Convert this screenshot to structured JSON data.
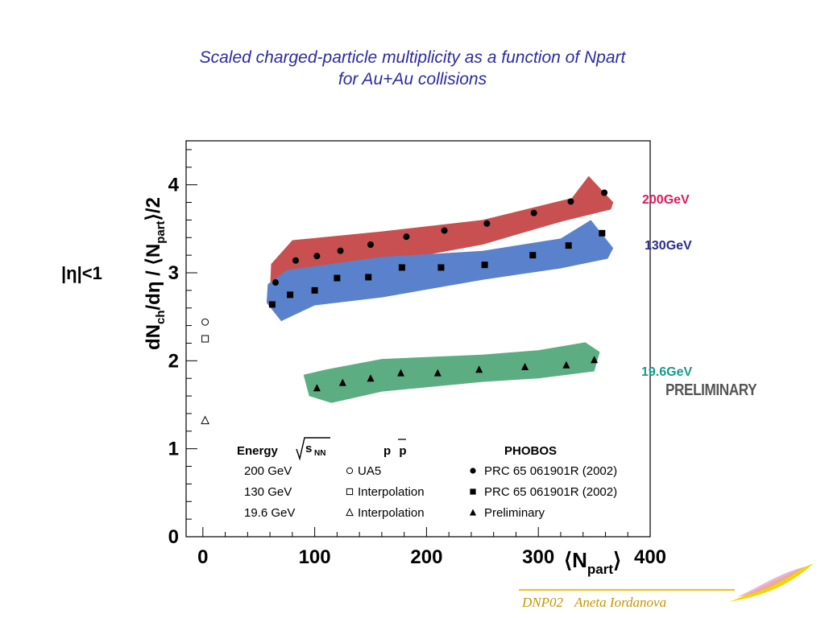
{
  "slide": {
    "title_line1": "Scaled charged-particle multiplicity as a function of Npart",
    "title_line2": "for Au+Au collisions",
    "eta_cut": "|η|<1",
    "preliminary": "PRELIMINARY",
    "footer_event": "DNP02",
    "footer_author": "Aneta Iordanova"
  },
  "colors": {
    "band_200": "#c85050",
    "band_130": "#5a82cc",
    "band_19": "#5cad82",
    "label_200": "#e0195a",
    "label_130": "#2b2b8c",
    "label_19": "#1a9a8a",
    "title": "#2b2ba0"
  },
  "chart_data": {
    "type": "scatter",
    "xlabel": "⟨N_part⟩",
    "ylabel": "dN_ch/dη / ⟨N_part⟩/2",
    "xlim": [
      -15,
      400
    ],
    "ylim": [
      0,
      4.5
    ],
    "xticks": [
      0,
      100,
      200,
      300,
      400
    ],
    "yticks": [
      0,
      1,
      2,
      3,
      4
    ],
    "grid": false,
    "series": [
      {
        "name": "200 GeV PHOBOS PRC 65 061901R (2002)",
        "energy_label": "200GeV",
        "marker": "filled-circle",
        "x": [
          65,
          83,
          102,
          123,
          150,
          182,
          216,
          254,
          296,
          329,
          359
        ],
        "y": [
          2.89,
          3.14,
          3.19,
          3.25,
          3.32,
          3.41,
          3.48,
          3.56,
          3.68,
          3.81,
          3.91
        ],
        "band_upper": [
          [
            61,
            3.1
          ],
          [
            80,
            3.37
          ],
          [
            160,
            3.47
          ],
          [
            250,
            3.6
          ],
          [
            330,
            3.85
          ],
          [
            345,
            4.1
          ],
          [
            367,
            3.8
          ]
        ],
        "band_lower": [
          [
            365,
            3.72
          ],
          [
            320,
            3.58
          ],
          [
            250,
            3.32
          ],
          [
            160,
            3.11
          ],
          [
            95,
            2.95
          ],
          [
            70,
            2.72
          ],
          [
            60,
            2.78
          ]
        ]
      },
      {
        "name": "130 GeV PHOBOS PRC 65 061901R (2002)",
        "energy_label": "130GeV",
        "marker": "filled-square",
        "x": [
          62,
          78,
          100,
          120,
          148,
          178,
          213,
          252,
          295,
          327,
          357
        ],
        "y": [
          2.64,
          2.75,
          2.8,
          2.94,
          2.95,
          3.06,
          3.06,
          3.09,
          3.2,
          3.31,
          3.45
        ],
        "band_upper": [
          [
            58,
            2.87
          ],
          [
            75,
            3.03
          ],
          [
            160,
            3.18
          ],
          [
            250,
            3.25
          ],
          [
            320,
            3.39
          ],
          [
            347,
            3.6
          ],
          [
            367,
            3.28
          ]
        ],
        "band_lower": [
          [
            362,
            3.16
          ],
          [
            320,
            3.05
          ],
          [
            250,
            2.92
          ],
          [
            160,
            2.72
          ],
          [
            100,
            2.63
          ],
          [
            70,
            2.45
          ],
          [
            57,
            2.66
          ]
        ]
      },
      {
        "name": "19.6 GeV PHOBOS Preliminary",
        "energy_label": "19.6GeV",
        "marker": "filled-triangle",
        "x": [
          102,
          125,
          150,
          177,
          210,
          247,
          288,
          325,
          350
        ],
        "y": [
          1.69,
          1.75,
          1.8,
          1.86,
          1.86,
          1.9,
          1.93,
          1.95,
          2.01
        ],
        "band_upper": [
          [
            90,
            1.84
          ],
          [
            110,
            1.9
          ],
          [
            160,
            2.02
          ],
          [
            250,
            2.07
          ],
          [
            300,
            2.12
          ],
          [
            342,
            2.21
          ],
          [
            355,
            2.1
          ]
        ],
        "band_lower": [
          [
            350,
            1.88
          ],
          [
            300,
            1.8
          ],
          [
            250,
            1.76
          ],
          [
            160,
            1.65
          ],
          [
            115,
            1.52
          ],
          [
            95,
            1.6
          ]
        ]
      },
      {
        "name": "200 GeV pp UA5",
        "marker": "open-circle",
        "x": [
          2
        ],
        "y": [
          2.44
        ]
      },
      {
        "name": "130 GeV pp Interpolation",
        "marker": "open-square",
        "x": [
          2
        ],
        "y": [
          2.25
        ]
      },
      {
        "name": "19.6 GeV pp Interpolation",
        "marker": "open-triangle",
        "x": [
          2
        ],
        "y": [
          1.32
        ]
      }
    ],
    "legend": {
      "placement": "bottom-left",
      "header_energy": "Energy",
      "header_sqrt": "s",
      "header_sqrt_sub": "NN",
      "header_pp": "p p",
      "header_phobos": "PHOBOS",
      "rows": [
        {
          "energy": "200 GeV",
          "pp_marker": "open-circle",
          "pp": "UA5",
          "phobos_marker": "filled-circle",
          "phobos": "PRC 65 061901R (2002)"
        },
        {
          "energy": "130 GeV",
          "pp_marker": "open-square",
          "pp": "Interpolation",
          "phobos_marker": "filled-square",
          "phobos": "PRC 65 061901R (2002)"
        },
        {
          "energy": "19.6 GeV",
          "pp_marker": "open-triangle",
          "pp": "Interpolation",
          "phobos_marker": "filled-triangle",
          "phobos": "Preliminary"
        }
      ]
    }
  }
}
